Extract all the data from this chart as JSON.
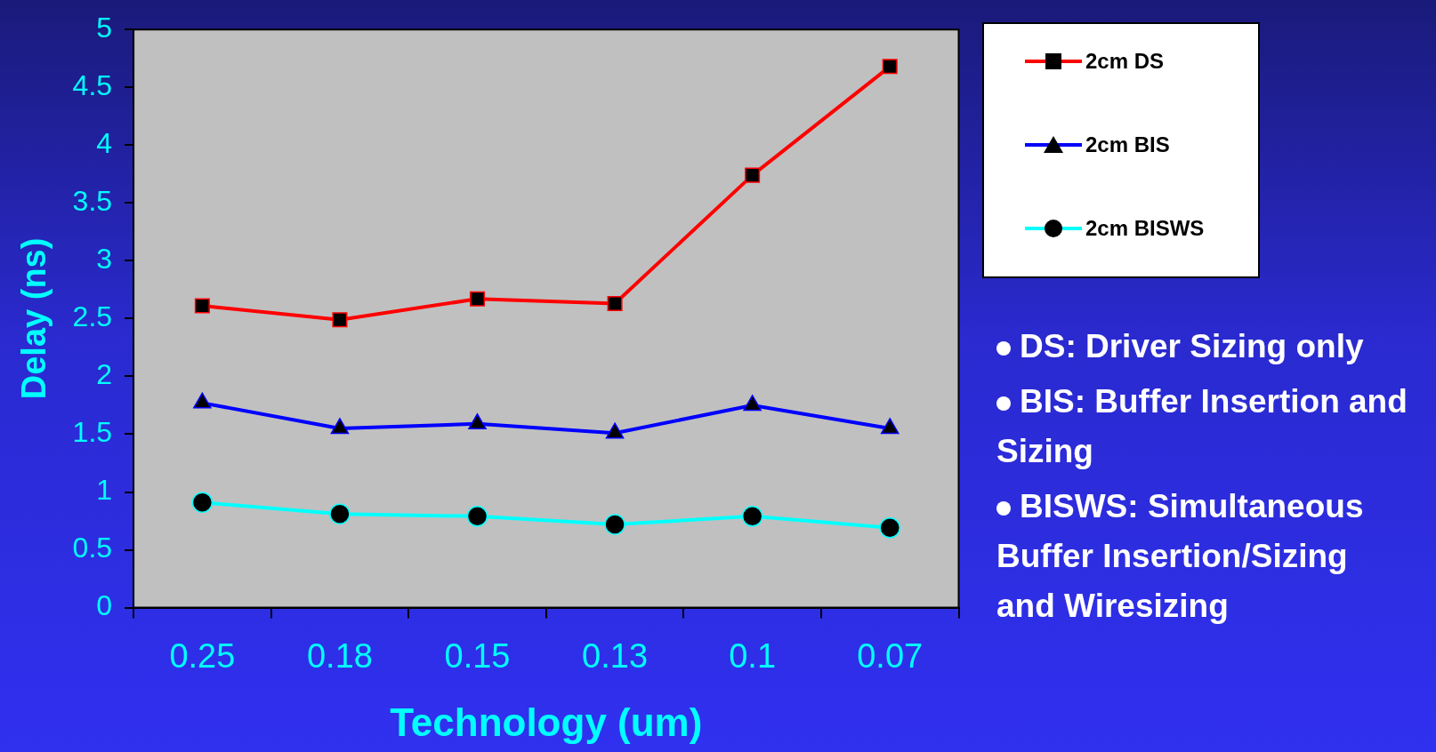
{
  "chart_data": {
    "type": "line",
    "xlabel": "Technology (um)",
    "ylabel": "Delay (ns)",
    "categories": [
      "0.25",
      "0.18",
      "0.15",
      "0.13",
      "0.1",
      "0.07"
    ],
    "series": [
      {
        "name": "2cm DS",
        "color": "#ff0000",
        "marker": "square",
        "values": [
          2.61,
          2.49,
          2.67,
          2.63,
          3.74,
          4.68
        ]
      },
      {
        "name": "2cm BIS",
        "color": "#0000ff",
        "marker": "triangle",
        "values": [
          1.77,
          1.55,
          1.59,
          1.51,
          1.75,
          1.55
        ]
      },
      {
        "name": "2cm BISWS",
        "color": "#00ffff",
        "marker": "circle",
        "values": [
          0.91,
          0.81,
          0.79,
          0.72,
          0.79,
          0.69
        ]
      }
    ],
    "ylim": [
      0,
      5
    ],
    "yticks": [
      0,
      0.5,
      1,
      1.5,
      2,
      2.5,
      3,
      3.5,
      4,
      4.5,
      5
    ],
    "grid": false,
    "legend": "top right",
    "line_style": "solid",
    "annotations": [
      "DS: Driver Sizing only",
      "BIS: Buffer Insertion and Sizing",
      "BISWS: Simultaneous Buffer Insertion/Sizing and Wiresizing"
    ]
  }
}
